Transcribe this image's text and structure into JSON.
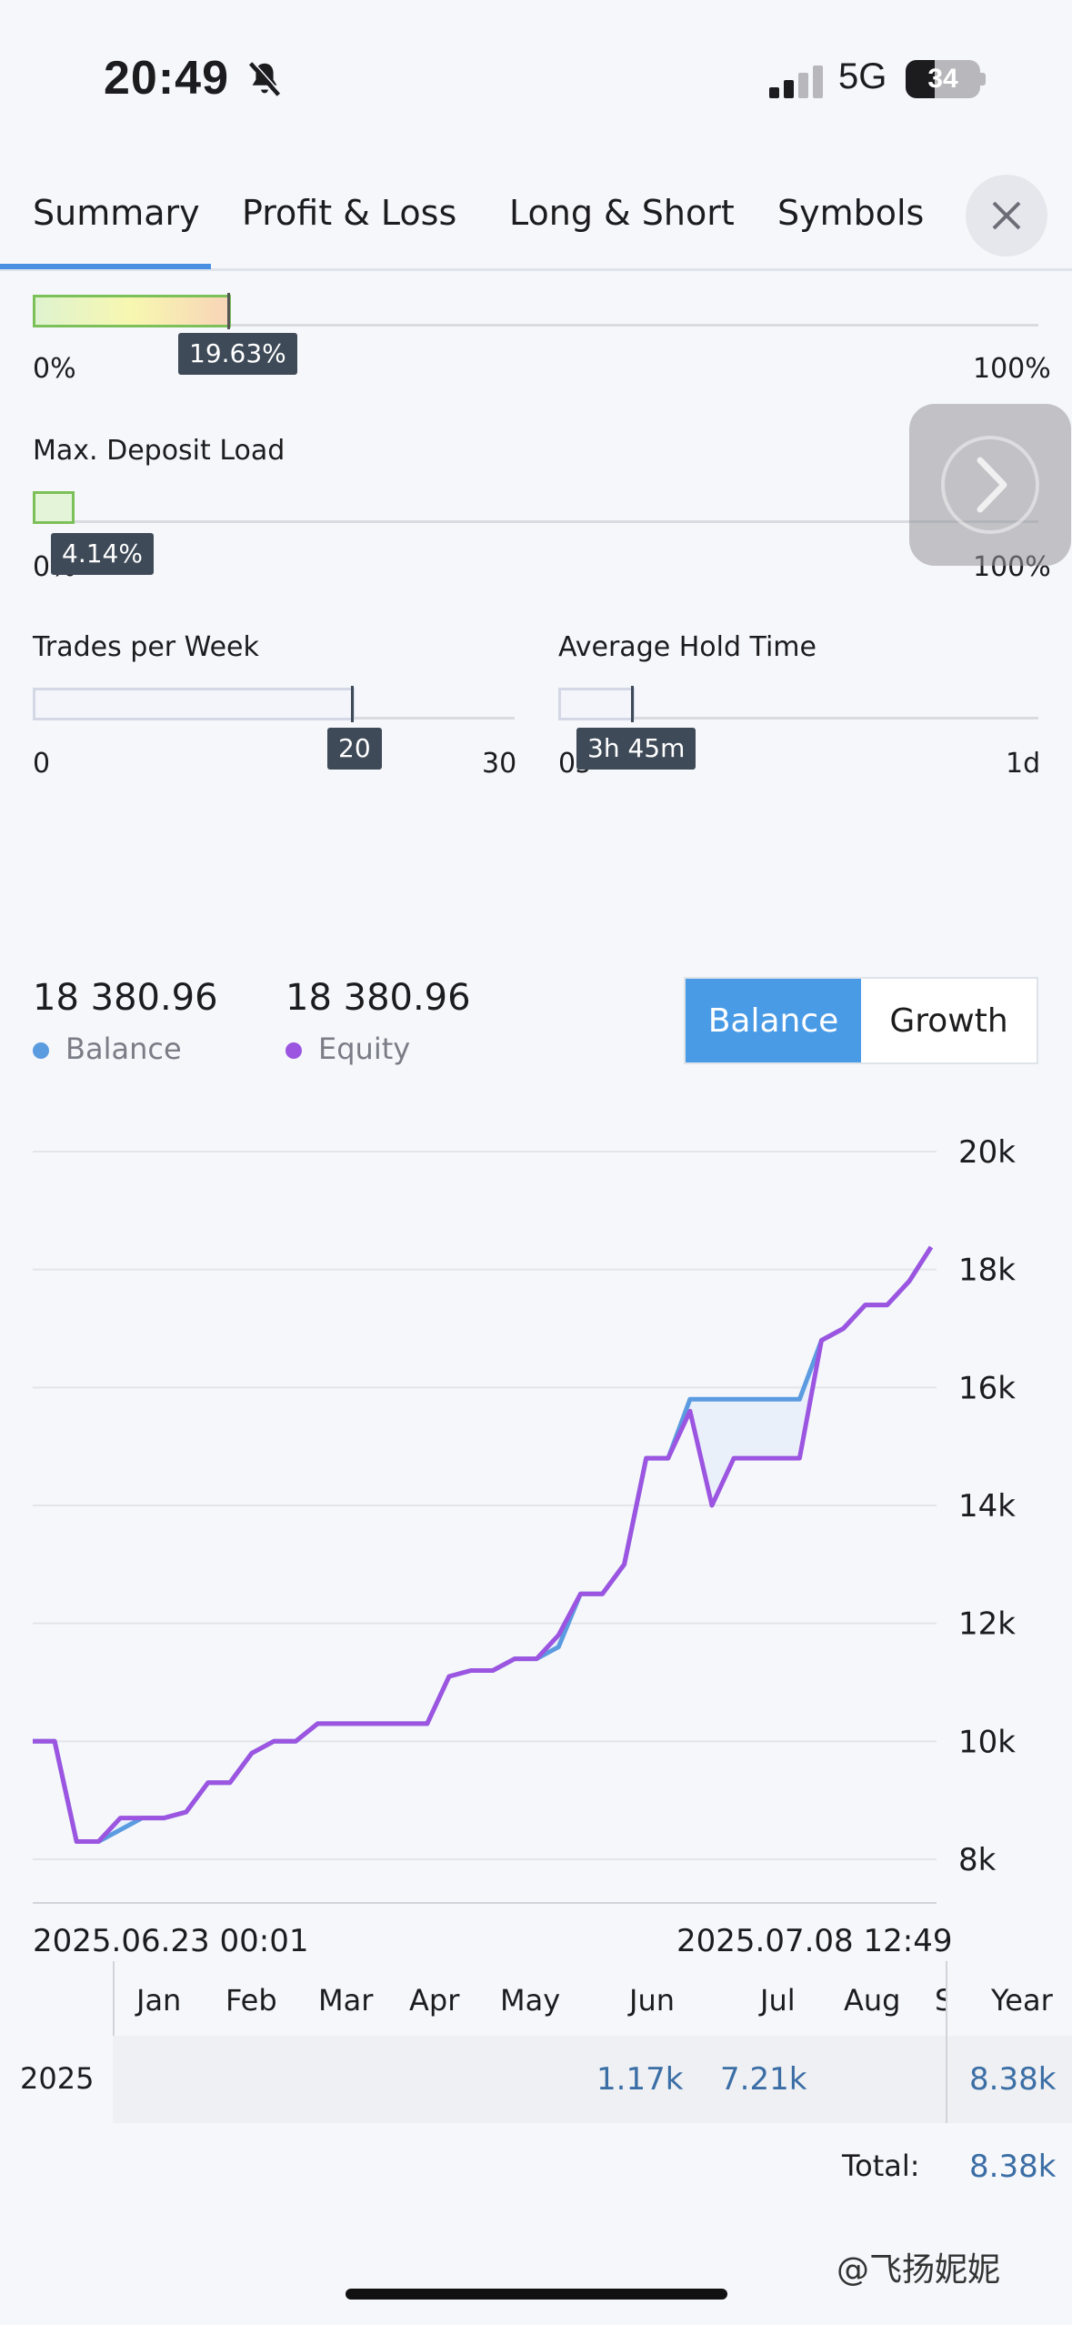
{
  "status_bar": {
    "time": "20:49",
    "network": "5G",
    "battery": "34"
  },
  "tabs": [
    {
      "label": "Summary",
      "active": true
    },
    {
      "label": "Profit & Loss"
    },
    {
      "label": "Long & Short"
    },
    {
      "label": "Symbols"
    }
  ],
  "close_icon": "close-icon",
  "drawdown_bar": {
    "value_label": "19.63%",
    "value": 0.1963,
    "min_label": "0%",
    "max_label": "100%"
  },
  "deposit_load": {
    "title": "Max. Deposit Load",
    "value_label": "4.14%",
    "value": 0.0414,
    "min_label": "0%",
    "max_label": "100%"
  },
  "trades_per_week": {
    "title": "Trades per Week",
    "value_label": "20",
    "value": 20,
    "min_label": "0",
    "max_label": "30"
  },
  "avg_hold_time": {
    "title": "Average Hold Time",
    "value_label": "3h 45m",
    "min_label": "0s",
    "max_label": "1d"
  },
  "balance_summary": {
    "balance_value": "18 380.96",
    "balance_label": "Balance",
    "equity_value": "18 380.96",
    "equity_label": "Equity",
    "toggle": [
      "Balance",
      "Growth"
    ],
    "toggle_active": "Balance"
  },
  "colors": {
    "balance": "#5b9be0",
    "equity": "#9b55e0",
    "accent": "#4a9be6"
  },
  "chart_data": {
    "type": "line",
    "x_start_label": "2025.06.23 00:01",
    "x_end_label": "2025.07.08 12:49",
    "y_ticks": [
      "20k",
      "18k",
      "16k",
      "14k",
      "12k",
      "10k",
      "8k"
    ],
    "ylim": [
      8000,
      20000
    ],
    "grid": true,
    "series": [
      {
        "name": "Balance",
        "values": [
          10000,
          10000,
          8300,
          8300,
          8500,
          8700,
          8700,
          8800,
          9300,
          9300,
          9800,
          10000,
          10000,
          10300,
          10300,
          10300,
          10300,
          10300,
          10300,
          11100,
          11200,
          11200,
          11400,
          11400,
          11600,
          12500,
          12500,
          13000,
          14800,
          14800,
          15800,
          15800,
          15800,
          15800,
          15800,
          15800,
          16800,
          17000,
          17400,
          17400,
          17800,
          18381
        ]
      },
      {
        "name": "Equity",
        "values": [
          10000,
          10000,
          8300,
          8300,
          8700,
          8700,
          8700,
          8800,
          9300,
          9300,
          9800,
          10000,
          10000,
          10300,
          10300,
          10300,
          10300,
          10300,
          10300,
          11100,
          11200,
          11200,
          11400,
          11400,
          11800,
          12500,
          12500,
          13000,
          14800,
          14800,
          15600,
          14000,
          14800,
          14800,
          14800,
          14800,
          16800,
          17000,
          17400,
          17400,
          17800,
          18381
        ]
      }
    ]
  },
  "monthly": {
    "months": [
      "Jan",
      "Feb",
      "Mar",
      "Apr",
      "May",
      "Jun",
      "Jul",
      "Aug",
      "S"
    ],
    "year_header": "Year",
    "rows": [
      {
        "year": "2025",
        "jun": "1.17k",
        "jul": "7.21k",
        "total": "8.38k"
      }
    ],
    "total_label": "Total:",
    "total_value": "8.38k"
  },
  "watermark": "@飞扬妮妮"
}
